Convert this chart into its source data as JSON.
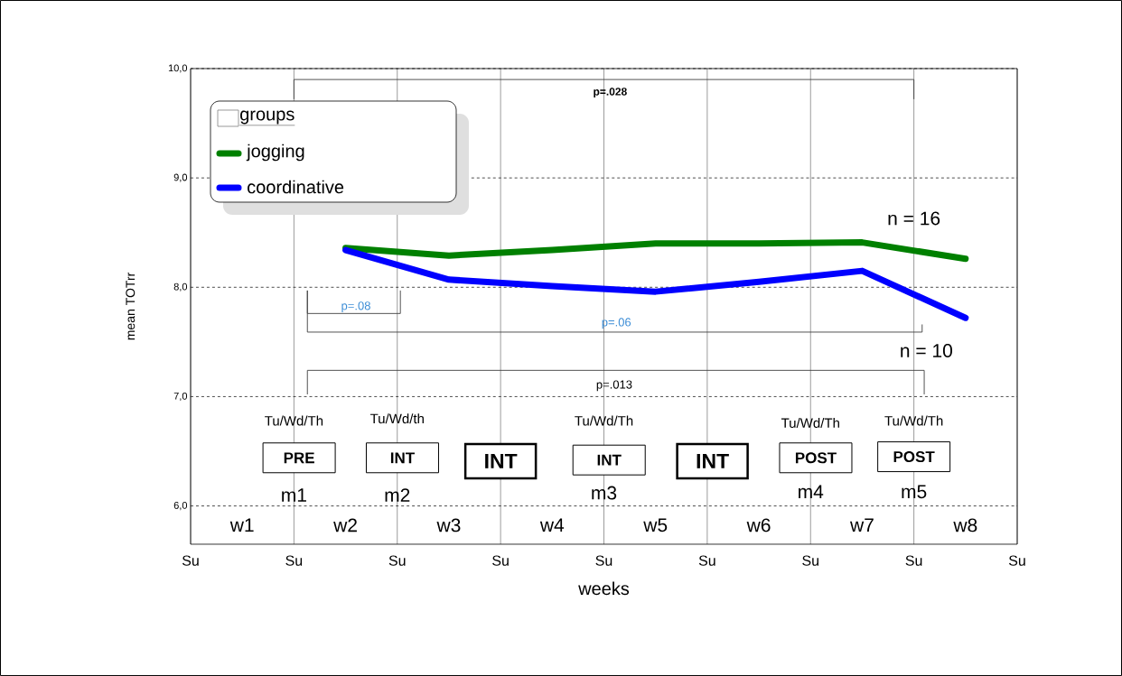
{
  "chart_data": {
    "type": "line",
    "xlabel": "weeks",
    "ylabel": "mean TOTrr",
    "legend_title": "groups",
    "categories": [
      "w1",
      "w2",
      "w3",
      "w4",
      "w5",
      "w6",
      "w7",
      "w8"
    ],
    "series": [
      {
        "name": "jogging",
        "color": "#008000",
        "values": [
          null,
          8.36,
          8.29,
          8.34,
          8.4,
          8.4,
          8.41,
          8.26
        ]
      },
      {
        "name": "coordinative",
        "color": "#0000ff",
        "values": [
          null,
          8.34,
          8.07,
          8.01,
          7.96,
          8.05,
          8.15,
          7.72
        ]
      }
    ],
    "ylim": [
      5.65,
      10
    ],
    "yticks": [
      {
        "value": 6,
        "label": "6,0"
      },
      {
        "value": 7,
        "label": "7,0"
      },
      {
        "value": 8,
        "label": "8,0"
      },
      {
        "value": 9,
        "label": "9,0"
      },
      {
        "value": 10,
        "label": "10,0"
      }
    ],
    "grid": true,
    "legend": "top left",
    "annotations": [
      "p=.028",
      "p=.08",
      "p=.06",
      "p=.013",
      "n = 16",
      "n = 10",
      "Tu/Wd/Th",
      "Tu/Wd/th",
      "Tu/Wd/Th",
      "Tu/Wd/Th",
      "Tu/Wd/Th",
      "PRE",
      "INT",
      "INT",
      "INT",
      "INT",
      "POST",
      "POST",
      "m1",
      "m2",
      "m3",
      "m4",
      "m5",
      "Su",
      "Su",
      "Su",
      "Su",
      "Su",
      "Su",
      "Su",
      "Su",
      "Su"
    ]
  }
}
